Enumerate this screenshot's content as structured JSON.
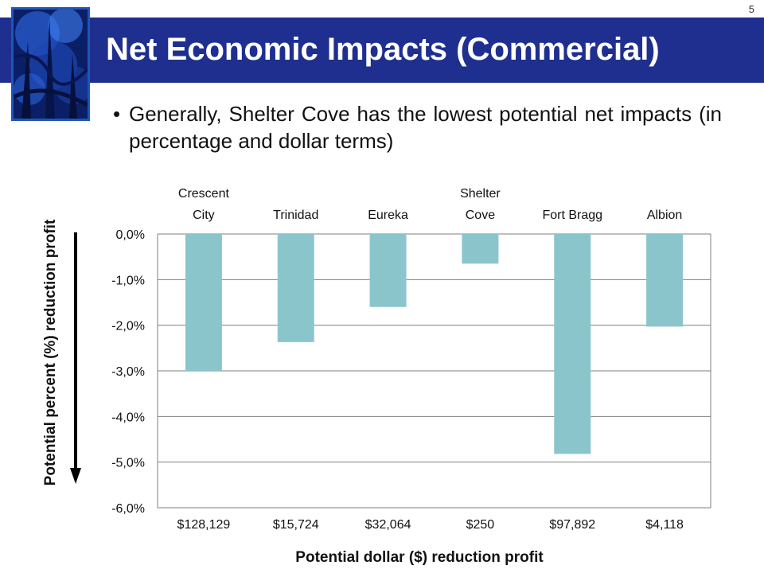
{
  "slide": {
    "number": "5",
    "title": "Net Economic Impacts (Commercial)",
    "bullet": "Generally, Shelter Cove has the lowest potential net impacts (in percentage and dollar terms)"
  },
  "colors": {
    "title_band": "#1f2f8f",
    "bar": "#8bc5cc",
    "grid": "#7f7f7f",
    "arrow": "#000000"
  },
  "chart_data": {
    "type": "bar",
    "categories": [
      "Crescent City",
      "Trinidad",
      "Eureka",
      "Shelter Cove",
      "Fort Bragg",
      "Albion"
    ],
    "top_labels": [
      [
        "Crescent",
        "City"
      ],
      [
        "Trinidad"
      ],
      [
        "Eureka"
      ],
      [
        "Shelter",
        "Cove"
      ],
      [
        "Fort Bragg"
      ],
      [
        "Albion"
      ]
    ],
    "values": [
      -3.0,
      -2.37,
      -1.6,
      -0.65,
      -4.82,
      -2.03
    ],
    "value_unit": "percent",
    "dollar_labels": [
      "$128,129",
      "$15,724",
      "$32,064",
      "$250",
      "$97,892",
      "$4,118"
    ],
    "ylim": [
      -6.0,
      0.0
    ],
    "yticks": [
      0,
      -1,
      -2,
      -3,
      -4,
      -5,
      -6
    ],
    "ytick_labels": [
      "0,0%",
      "-1,0%",
      "-2,0%",
      "-3,0%",
      "-4,0%",
      "-5,0%",
      "-6,0%"
    ],
    "ylabel": "Potential percent (%) reduction profit",
    "xlabel": "Potential dollar ($) reduction profit",
    "grid": true,
    "legend": "none"
  }
}
